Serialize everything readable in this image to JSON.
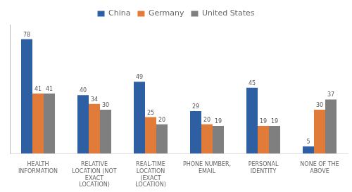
{
  "chart_data": {
    "type": "bar",
    "categories": [
      "HEALTH\nINFORMATION",
      "RELATIVE\nLOCATION (NOT\nEXACT\nLOCATION)",
      "REAL-TIME\nLOCATION\n(EXACT\nLOCATION)",
      "PHONE NUMBER,\nEMAIL",
      "PERSONAL\nIDENTITY",
      "NONE OF THE\nABOVE"
    ],
    "series": [
      {
        "name": "China",
        "color": "#2E5FA3",
        "values": [
          78,
          40,
          49,
          29,
          45,
          5
        ]
      },
      {
        "name": "Germany",
        "color": "#E07B39",
        "values": [
          41,
          34,
          25,
          20,
          19,
          30
        ]
      },
      {
        "name": "United States",
        "color": "#7F7F7F",
        "values": [
          41,
          30,
          20,
          19,
          19,
          37
        ]
      }
    ],
    "ylim": [
      0,
      88
    ],
    "grid": false,
    "legend": "top",
    "data_labels": true,
    "tick_labels": "x"
  }
}
